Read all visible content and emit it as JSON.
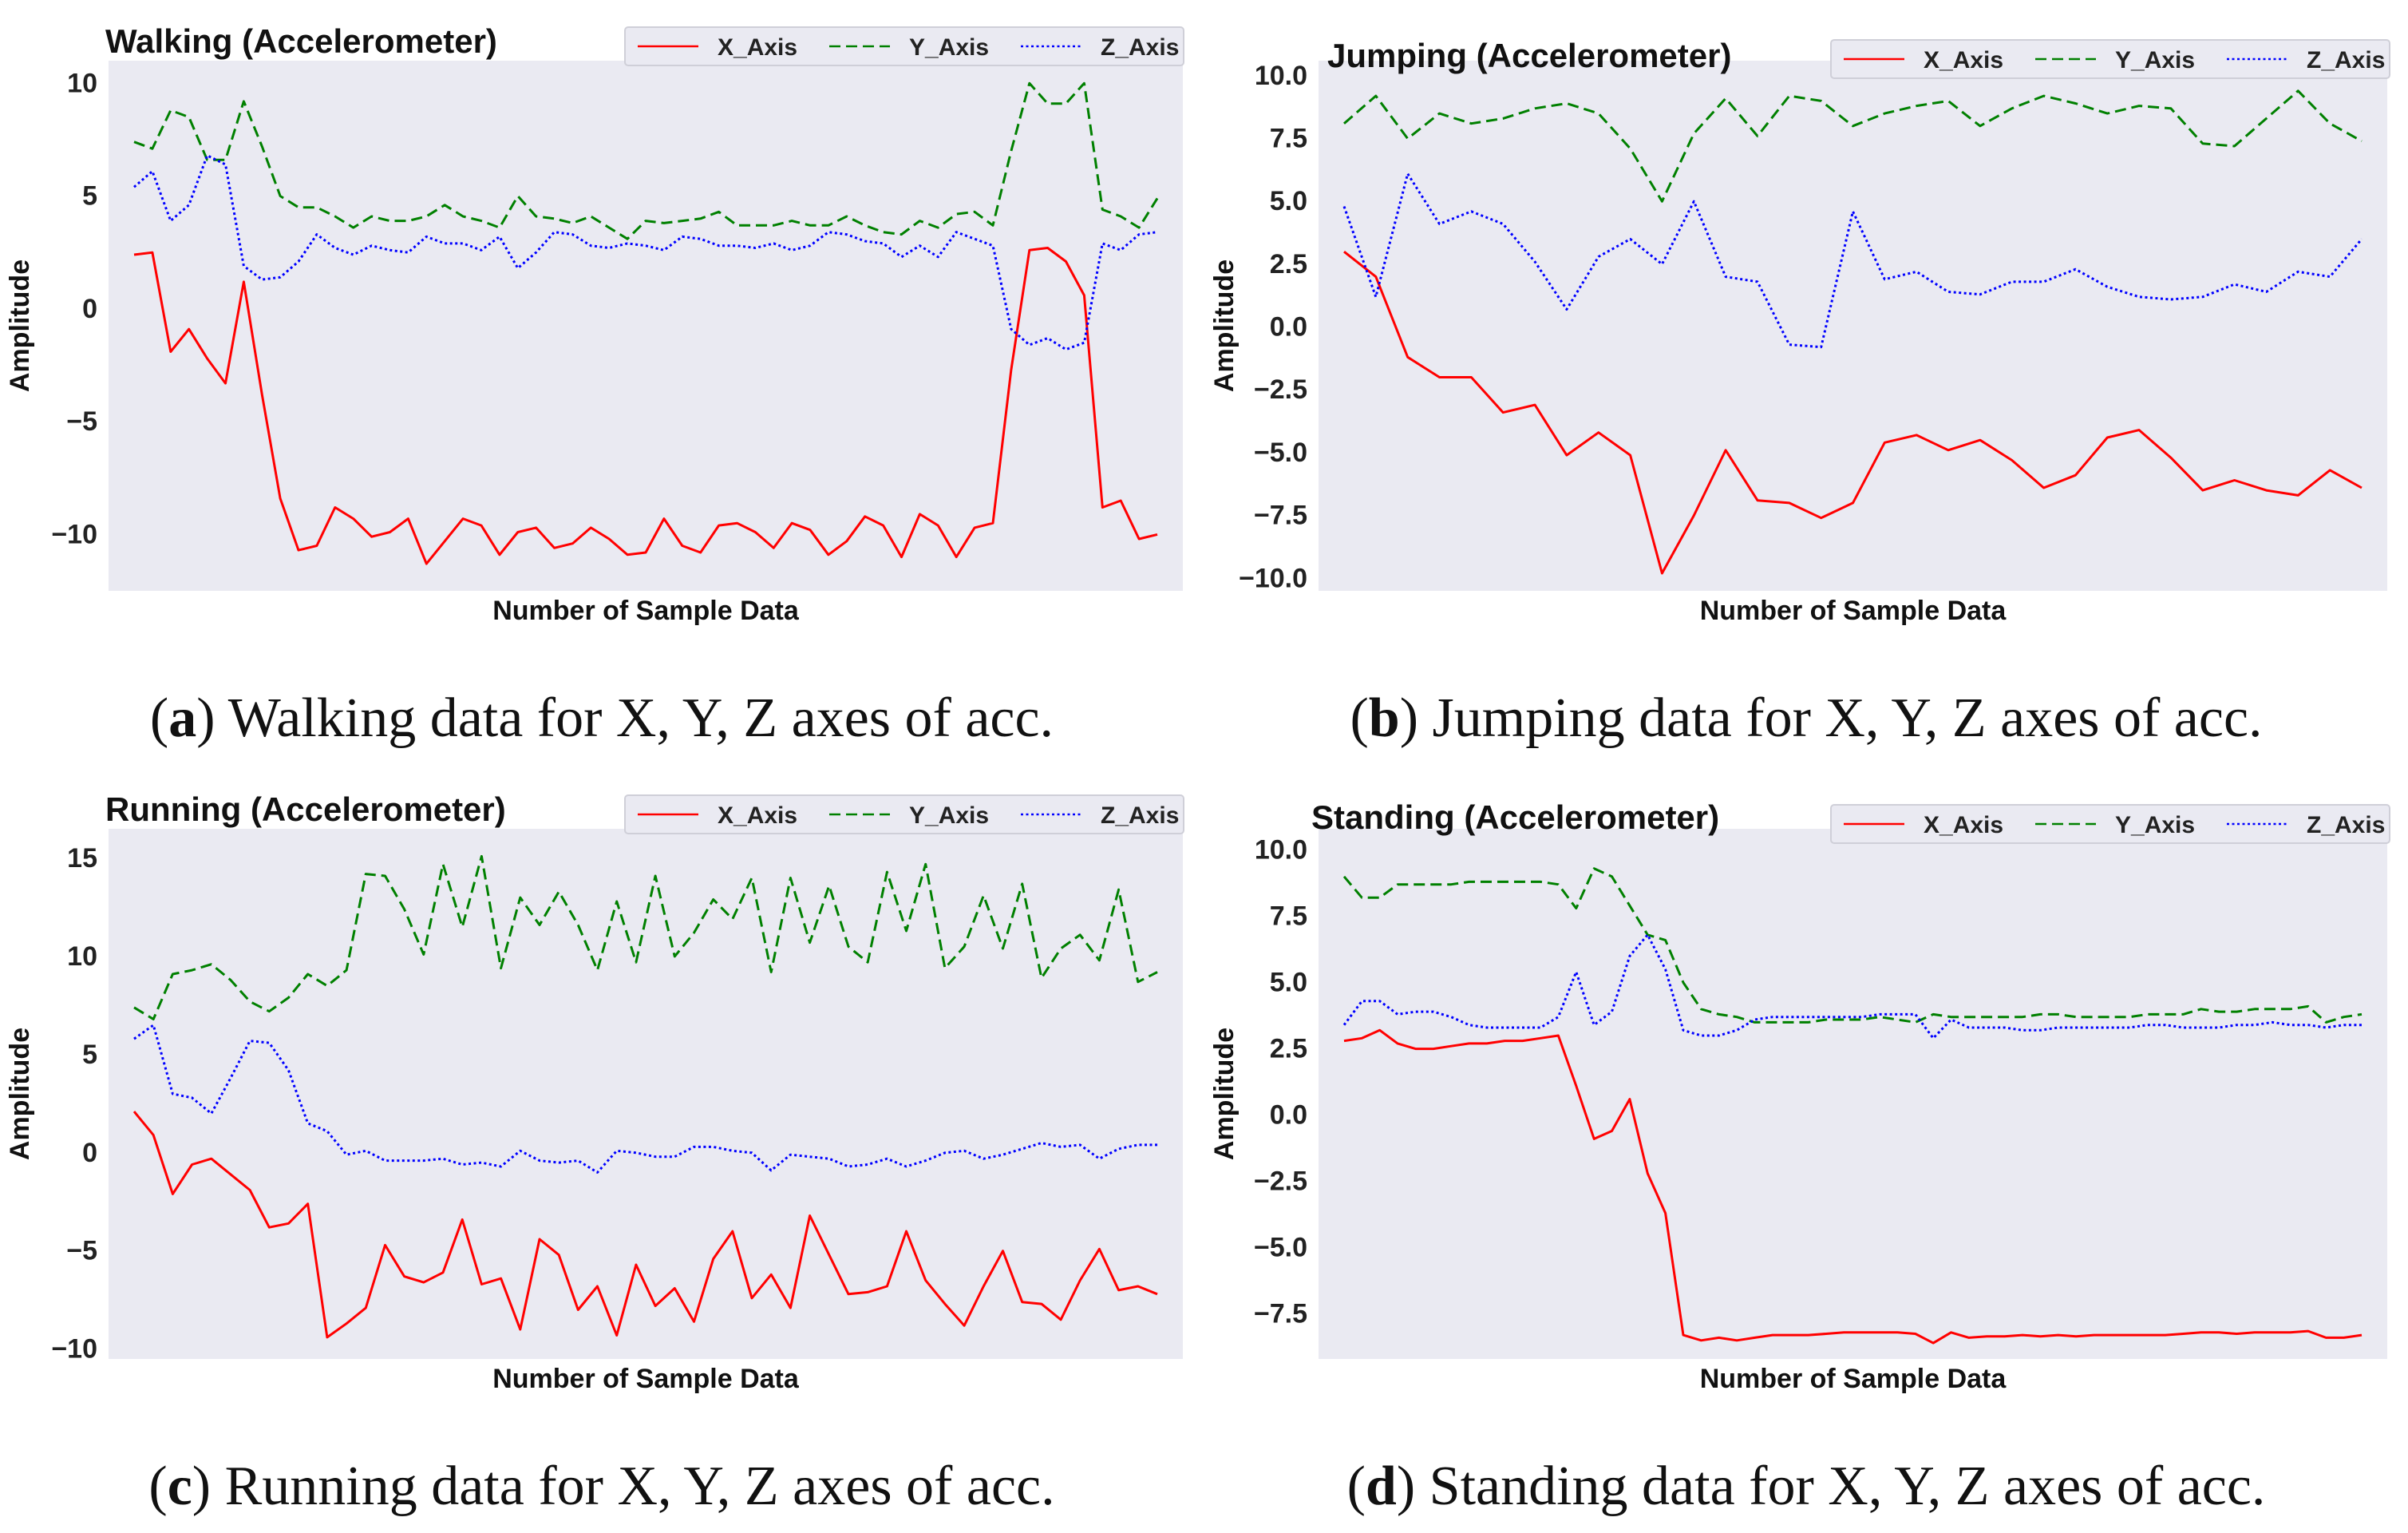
{
  "colors": {
    "x": "#ff0000",
    "y": "#008000",
    "z": "#0000ff",
    "plot_bg": "#eaeaf2"
  },
  "chart_data": [
    {
      "id": "a",
      "type": "line",
      "title": "Walking (Accelerometer)",
      "xlabel": "Number of Sample Data",
      "ylabel": "Amplitude",
      "ylim": [
        -12.5,
        11
      ],
      "yticks": [
        -10,
        -5,
        0,
        5,
        10
      ],
      "ytick_labels": [
        "−10",
        "−5",
        "0",
        "5",
        "10"
      ],
      "legend": "top-right",
      "caption": {
        "letter": "a",
        "text": "Walking data for X, Y, Z axes of acc."
      },
      "series": [
        {
          "name": "X_Axis",
          "values": [
            2.4,
            2.5,
            -1.9,
            -0.9,
            -2.2,
            -3.3,
            1.2,
            -3.8,
            -8.4,
            -10.7,
            -10.5,
            -8.8,
            -9.3,
            -10.1,
            -9.9,
            -9.3,
            -11.3,
            -10.3,
            -9.3,
            -9.6,
            -10.9,
            -9.9,
            -9.7,
            -10.6,
            -10.4,
            -9.7,
            -10.2,
            -10.9,
            -10.8,
            -9.3,
            -10.5,
            -10.8,
            -9.6,
            -9.5,
            -9.9,
            -10.6,
            -9.5,
            -9.8,
            -10.9,
            -10.3,
            -9.2,
            -9.6,
            -11.0,
            -9.1,
            -9.6,
            -11.0,
            -9.7,
            -9.5,
            -2.7,
            2.6,
            2.7,
            2.1,
            0.6,
            -8.8,
            -8.5,
            -10.2,
            -10.0
          ]
        },
        {
          "name": "Y_Axis",
          "values": [
            7.4,
            7.1,
            8.8,
            8.5,
            6.6,
            6.6,
            9.2,
            7.2,
            5.0,
            4.5,
            4.5,
            4.1,
            3.6,
            4.1,
            3.9,
            3.9,
            4.1,
            4.6,
            4.1,
            3.9,
            3.6,
            5.0,
            4.1,
            4.0,
            3.8,
            4.1,
            3.6,
            3.1,
            3.9,
            3.8,
            3.9,
            4.0,
            4.3,
            3.7,
            3.7,
            3.7,
            3.9,
            3.7,
            3.7,
            4.1,
            3.7,
            3.4,
            3.3,
            3.9,
            3.6,
            4.2,
            4.3,
            3.7,
            7.0,
            10.0,
            9.1,
            9.1,
            10.0,
            4.4,
            4.1,
            3.6,
            4.9
          ]
        },
        {
          "name": "Z_Axis",
          "values": [
            5.4,
            6.1,
            3.9,
            4.6,
            6.8,
            6.4,
            1.9,
            1.3,
            1.4,
            2.1,
            3.3,
            2.7,
            2.4,
            2.8,
            2.6,
            2.5,
            3.2,
            2.9,
            2.9,
            2.6,
            3.2,
            1.8,
            2.5,
            3.4,
            3.3,
            2.8,
            2.7,
            2.9,
            2.8,
            2.6,
            3.2,
            3.1,
            2.8,
            2.8,
            2.7,
            2.9,
            2.6,
            2.8,
            3.4,
            3.3,
            3.0,
            2.9,
            2.3,
            2.8,
            2.3,
            3.4,
            3.1,
            2.8,
            -0.9,
            -1.6,
            -1.3,
            -1.8,
            -1.5,
            2.9,
            2.6,
            3.3,
            3.4
          ]
        }
      ]
    },
    {
      "id": "b",
      "type": "line",
      "title": "Jumping (Accelerometer)",
      "xlabel": "Number of Sample Data",
      "ylabel": "Amplitude",
      "ylim": [
        -10.5,
        10.6
      ],
      "yticks": [
        -10,
        -7.5,
        -5,
        -2.5,
        0,
        2.5,
        5,
        7.5,
        10
      ],
      "ytick_labels": [
        "−10.0",
        "−7.5",
        "−5.0",
        "−2.5",
        "0.0",
        "2.5",
        "5.0",
        "7.5",
        "10.0"
      ],
      "legend": "top-right",
      "caption": {
        "letter": "b",
        "text": "Jumping data for X, Y, Z axes of acc."
      },
      "series": [
        {
          "name": "X_Axis",
          "values": [
            3.0,
            2.0,
            -1.2,
            -2.0,
            -2.0,
            -3.4,
            -3.1,
            -5.1,
            -4.2,
            -5.1,
            -9.8,
            -7.5,
            -4.9,
            -6.9,
            -7.0,
            -7.6,
            -7.0,
            -4.6,
            -4.3,
            -4.9,
            -4.5,
            -5.3,
            -6.4,
            -5.9,
            -4.4,
            -4.1,
            -5.2,
            -6.5,
            -6.1,
            -6.5,
            -6.7,
            -5.7,
            -6.4
          ]
        },
        {
          "name": "Y_Axis",
          "values": [
            8.1,
            9.2,
            7.5,
            8.5,
            8.1,
            8.3,
            8.7,
            8.9,
            8.5,
            7.1,
            5.0,
            7.7,
            9.1,
            7.6,
            9.2,
            9.0,
            8.0,
            8.5,
            8.8,
            9.0,
            8.0,
            8.7,
            9.2,
            8.9,
            8.5,
            8.8,
            8.7,
            7.3,
            7.2,
            8.3,
            9.4,
            8.1,
            7.4
          ]
        },
        {
          "name": "Z_Axis",
          "values": [
            4.8,
            1.2,
            6.1,
            4.1,
            4.6,
            4.1,
            2.6,
            0.7,
            2.8,
            3.5,
            2.5,
            5.0,
            2.0,
            1.8,
            -0.7,
            -0.8,
            4.6,
            1.9,
            2.2,
            1.4,
            1.3,
            1.8,
            1.8,
            2.3,
            1.6,
            1.2,
            1.1,
            1.2,
            1.7,
            1.4,
            2.2,
            2.0,
            3.5
          ]
        }
      ]
    },
    {
      "id": "c",
      "type": "line",
      "title": "Running (Accelerometer)",
      "xlabel": "Number of Sample Data",
      "ylabel": "Amplitude",
      "ylim": [
        -10.5,
        16.5
      ],
      "yticks": [
        -10,
        -5,
        0,
        5,
        10,
        15
      ],
      "ytick_labels": [
        "−10",
        "−5",
        "0",
        "5",
        "10",
        "15"
      ],
      "legend": "top-right",
      "caption": {
        "letter": "c",
        "text": "Running data for X, Y, Z axes of acc."
      },
      "series": [
        {
          "name": "X_Axis",
          "values": [
            2.1,
            0.9,
            -2.1,
            -0.6,
            -0.3,
            -1.1,
            -1.9,
            -3.8,
            -3.6,
            -2.6,
            -9.4,
            -8.7,
            -7.9,
            -4.7,
            -6.3,
            -6.6,
            -6.1,
            -3.4,
            -6.7,
            -6.4,
            -9.0,
            -4.4,
            -5.2,
            -8.0,
            -6.8,
            -9.3,
            -5.7,
            -7.8,
            -6.9,
            -8.6,
            -5.4,
            -4.0,
            -7.4,
            -6.2,
            -7.9,
            -3.2,
            -5.2,
            -7.2,
            -7.1,
            -6.8,
            -4.0,
            -6.5,
            -7.7,
            -8.8,
            -6.8,
            -5.0,
            -7.6,
            -7.7,
            -8.5,
            -6.5,
            -4.9,
            -7.0,
            -6.8,
            -7.2
          ]
        },
        {
          "name": "Y_Axis",
          "values": [
            7.4,
            6.8,
            9.1,
            9.3,
            9.6,
            8.8,
            7.7,
            7.2,
            7.9,
            9.1,
            8.5,
            9.3,
            14.2,
            14.1,
            12.4,
            10.1,
            14.7,
            11.5,
            15.1,
            9.4,
            13.0,
            11.6,
            13.3,
            11.6,
            9.3,
            12.8,
            9.7,
            14.1,
            10.0,
            11.2,
            12.9,
            11.9,
            14.0,
            9.2,
            14.0,
            10.7,
            13.6,
            10.5,
            9.7,
            14.3,
            11.3,
            14.7,
            9.4,
            10.5,
            13.1,
            10.4,
            13.7,
            8.9,
            10.4,
            11.1,
            9.8,
            13.4,
            8.7,
            9.2
          ]
        },
        {
          "name": "Z_Axis",
          "values": [
            5.8,
            6.5,
            3.0,
            2.8,
            2.0,
            3.8,
            5.7,
            5.6,
            4.2,
            1.5,
            1.1,
            -0.1,
            0.1,
            -0.4,
            -0.4,
            -0.4,
            -0.3,
            -0.6,
            -0.5,
            -0.7,
            0.1,
            -0.4,
            -0.5,
            -0.4,
            -1.0,
            0.1,
            0.0,
            -0.2,
            -0.2,
            0.3,
            0.3,
            0.1,
            0.0,
            -0.9,
            -0.1,
            -0.2,
            -0.3,
            -0.7,
            -0.6,
            -0.3,
            -0.7,
            -0.4,
            0.0,
            0.1,
            -0.3,
            -0.1,
            0.2,
            0.5,
            0.3,
            0.4,
            -0.3,
            0.2,
            0.4,
            0.4
          ]
        }
      ]
    },
    {
      "id": "d",
      "type": "line",
      "title": "Standing (Accelerometer)",
      "xlabel": "Number of Sample Data",
      "ylabel": "Amplitude",
      "ylim": [
        -9.2,
        10.8
      ],
      "yticks": [
        -7.5,
        -5,
        -2.5,
        0,
        2.5,
        5,
        7.5,
        10
      ],
      "ytick_labels": [
        "−7.5",
        "−5.0",
        "−2.5",
        "0.0",
        "2.5",
        "5.0",
        "7.5",
        "10.0"
      ],
      "legend": "top-right",
      "caption": {
        "letter": "d",
        "text": "Standing data for X, Y, Z axes of acc."
      },
      "series": [
        {
          "name": "X_Axis",
          "values": [
            2.8,
            2.9,
            3.2,
            2.7,
            2.5,
            2.5,
            2.6,
            2.7,
            2.7,
            2.8,
            2.8,
            2.9,
            3.0,
            1.1,
            -0.9,
            -0.6,
            0.6,
            -2.2,
            -3.7,
            -8.3,
            -8.5,
            -8.4,
            -8.5,
            -8.4,
            -8.3,
            -8.3,
            -8.3,
            -8.25,
            -8.2,
            -8.2,
            -8.2,
            -8.2,
            -8.25,
            -8.6,
            -8.2,
            -8.4,
            -8.35,
            -8.35,
            -8.3,
            -8.35,
            -8.3,
            -8.35,
            -8.3,
            -8.3,
            -8.3,
            -8.3,
            -8.3,
            -8.25,
            -8.2,
            -8.2,
            -8.25,
            -8.2,
            -8.2,
            -8.2,
            -8.15,
            -8.4,
            -8.4,
            -8.3
          ]
        },
        {
          "name": "Y_Axis",
          "values": [
            9.0,
            8.2,
            8.2,
            8.7,
            8.7,
            8.7,
            8.7,
            8.8,
            8.8,
            8.8,
            8.8,
            8.8,
            8.7,
            7.8,
            9.3,
            9.0,
            7.9,
            6.8,
            6.6,
            5.0,
            4.0,
            3.8,
            3.7,
            3.5,
            3.5,
            3.5,
            3.5,
            3.6,
            3.6,
            3.6,
            3.7,
            3.6,
            3.5,
            3.8,
            3.7,
            3.7,
            3.7,
            3.7,
            3.7,
            3.8,
            3.8,
            3.7,
            3.7,
            3.7,
            3.7,
            3.8,
            3.8,
            3.8,
            4.0,
            3.9,
            3.9,
            4.0,
            4.0,
            4.0,
            4.1,
            3.5,
            3.7,
            3.8
          ]
        },
        {
          "name": "Z_Axis",
          "values": [
            3.4,
            4.3,
            4.3,
            3.8,
            3.9,
            3.9,
            3.7,
            3.4,
            3.3,
            3.3,
            3.3,
            3.3,
            3.7,
            5.4,
            3.4,
            3.9,
            6.0,
            6.8,
            5.5,
            3.2,
            3.0,
            3.0,
            3.2,
            3.6,
            3.7,
            3.7,
            3.7,
            3.7,
            3.7,
            3.7,
            3.8,
            3.8,
            3.8,
            2.9,
            3.6,
            3.3,
            3.3,
            3.3,
            3.2,
            3.2,
            3.3,
            3.3,
            3.3,
            3.3,
            3.3,
            3.4,
            3.4,
            3.3,
            3.3,
            3.3,
            3.4,
            3.4,
            3.5,
            3.4,
            3.4,
            3.3,
            3.4,
            3.4
          ]
        }
      ]
    }
  ]
}
